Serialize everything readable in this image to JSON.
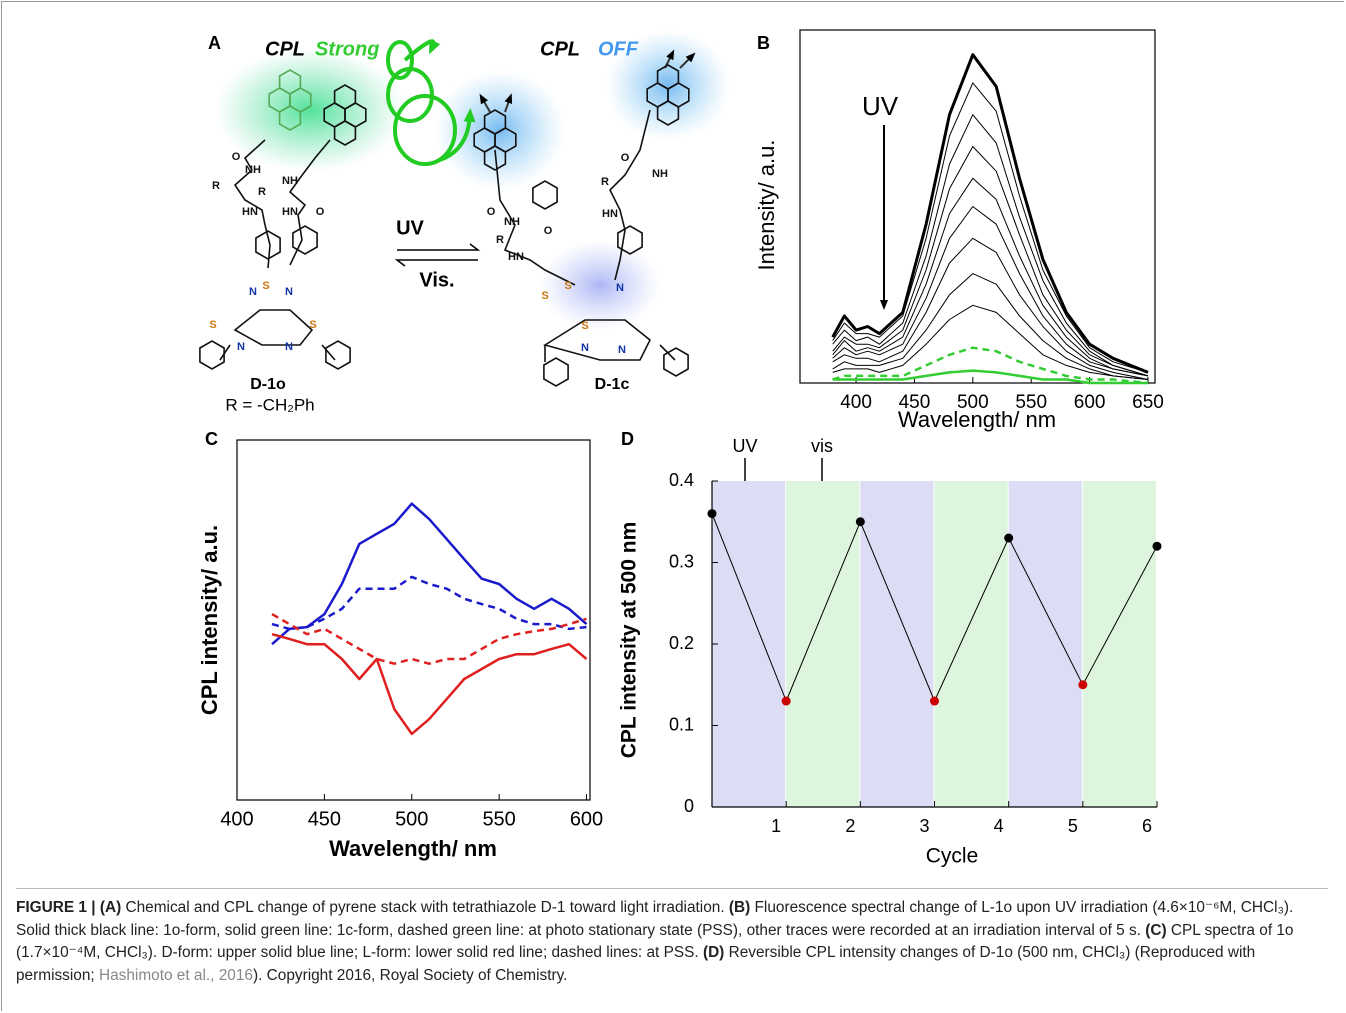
{
  "panel_a": {
    "letter": "A",
    "left_cpl": "CPL",
    "left_state": "Strong",
    "right_cpl": "CPL",
    "right_state": "OFF",
    "forward": "UV",
    "backward": "Vis.",
    "left_name": "D-1o",
    "substituent": "R = -CH₂Ph",
    "right_name": "D-1c",
    "left_atoms": [
      "O",
      "NH",
      "R",
      "R",
      "NH",
      "O",
      "HN",
      "HN",
      "S",
      "N",
      "N",
      "S",
      "S",
      "N",
      "N"
    ],
    "right_atoms": [
      "O",
      "NH",
      "R",
      "O",
      "HN",
      "O",
      "NH",
      "R",
      "HN",
      "S",
      "N",
      "S",
      "S",
      "N",
      "N"
    ]
  },
  "chart_data": [
    {
      "type": "line",
      "panel": "B",
      "xlabel": "Wavelength/ nm",
      "ylabel": "Intensity/ a.u.",
      "annotation": "UV",
      "frame": true,
      "x": [
        380,
        390,
        400,
        410,
        420,
        440,
        460,
        480,
        500,
        520,
        540,
        560,
        580,
        600,
        620,
        650
      ],
      "xlim": [
        352,
        656
      ],
      "xticks": [
        400,
        450,
        500,
        550,
        600,
        650
      ],
      "ylim": [
        0,
        100
      ],
      "series": [
        {
          "color": "#000000",
          "width": 3,
          "values": [
            13,
            19,
            15,
            16,
            14,
            20,
            45,
            76,
            93,
            84,
            58,
            35,
            20,
            11,
            7,
            3
          ]
        },
        {
          "color": "#000000",
          "width": 1,
          "values": [
            12,
            17,
            14,
            14,
            13,
            19,
            41,
            70,
            85,
            77,
            53,
            32,
            19,
            10,
            6,
            3
          ]
        },
        {
          "color": "#000000",
          "width": 1,
          "values": [
            11,
            15,
            12,
            13,
            11,
            17,
            36,
            62,
            76,
            68,
            47,
            29,
            17,
            9,
            5,
            2
          ]
        },
        {
          "color": "#000000",
          "width": 1,
          "values": [
            9,
            13,
            11,
            11,
            10,
            15,
            32,
            55,
            67,
            60,
            42,
            25,
            15,
            8,
            5,
            2
          ]
        },
        {
          "color": "#000000",
          "width": 1,
          "values": [
            8,
            12,
            9,
            10,
            9,
            13,
            28,
            48,
            58,
            52,
            36,
            22,
            13,
            7,
            4,
            2
          ]
        },
        {
          "color": "#000000",
          "width": 1,
          "values": [
            7,
            10,
            8,
            9,
            8,
            11,
            24,
            41,
            50,
            45,
            31,
            19,
            11,
            6,
            4,
            2
          ]
        },
        {
          "color": "#000000",
          "width": 1,
          "values": [
            6,
            8,
            7,
            7,
            6,
            9,
            20,
            34,
            41,
            37,
            25,
            16,
            9,
            5,
            3,
            1
          ]
        },
        {
          "color": "#000000",
          "width": 1,
          "values": [
            4,
            6,
            5,
            5,
            5,
            7,
            15,
            25,
            31,
            28,
            19,
            12,
            7,
            4,
            2,
            1
          ]
        },
        {
          "color": "#000000",
          "width": 1,
          "values": [
            3,
            4,
            4,
            4,
            3,
            5,
            11,
            18,
            22,
            20,
            14,
            8,
            5,
            3,
            2,
            1
          ]
        },
        {
          "color": "#33cc33",
          "width": 2.5,
          "dashed": true,
          "values": [
            1,
            2,
            2,
            2,
            2,
            2,
            5,
            8,
            10,
            9,
            6,
            4,
            2,
            1,
            1,
            0
          ]
        },
        {
          "color": "#33cc33",
          "width": 2.5,
          "values": [
            1,
            1,
            1,
            1,
            1,
            1,
            2,
            3,
            3.5,
            3,
            2,
            1,
            1,
            0,
            0,
            0
          ]
        }
      ]
    },
    {
      "type": "line",
      "panel": "C",
      "xlabel": "Wavelength/ nm",
      "ylabel": "CPL intensity/ a.u.",
      "frame": true,
      "x": [
        420,
        430,
        440,
        450,
        460,
        470,
        480,
        490,
        500,
        510,
        520,
        530,
        540,
        550,
        560,
        570,
        580,
        590,
        600
      ],
      "xlim": [
        400,
        602
      ],
      "xticks": [
        400,
        450,
        500,
        550,
        600
      ],
      "ylim": [
        -3,
        3.1
      ],
      "series": [
        {
          "color": "#1a1acc",
          "width": 2.5,
          "values": [
            -0.36,
            -0.1,
            -0.07,
            0.15,
            0.66,
            1.34,
            1.51,
            1.68,
            2.02,
            1.76,
            1.42,
            1.08,
            0.75,
            0.66,
            0.41,
            0.24,
            0.41,
            0.24,
            -0.02
          ]
        },
        {
          "color": "#1a1acc",
          "width": 2.5,
          "dashed": true,
          "values": [
            -0.02,
            -0.1,
            -0.07,
            0.07,
            0.24,
            0.58,
            0.58,
            0.58,
            0.78,
            0.66,
            0.58,
            0.41,
            0.32,
            0.24,
            0.07,
            -0.02,
            -0.02,
            -0.1,
            -0.07
          ]
        },
        {
          "color": "#e02020",
          "width": 2.5,
          "values": [
            -0.19,
            -0.27,
            -0.36,
            -0.36,
            -0.61,
            -0.95,
            -0.61,
            -1.46,
            -1.88,
            -1.63,
            -1.29,
            -0.95,
            -0.78,
            -0.61,
            -0.53,
            -0.53,
            -0.44,
            -0.36,
            -0.61
          ]
        },
        {
          "color": "#e02020",
          "width": 2.5,
          "dashed": true,
          "values": [
            0.15,
            -0.02,
            -0.19,
            -0.1,
            -0.27,
            -0.44,
            -0.61,
            -0.69,
            -0.61,
            -0.69,
            -0.61,
            -0.61,
            -0.44,
            -0.27,
            -0.19,
            -0.14,
            -0.1,
            -0.02,
            0.07
          ]
        }
      ]
    },
    {
      "type": "line",
      "panel": "D",
      "xlabel": "Cycle",
      "ylabel": "CPL intensity at 500 nm",
      "annotations": [
        "UV",
        "vis"
      ],
      "frame": false,
      "markers": true,
      "x": [
        0,
        1,
        2,
        3,
        4,
        5,
        6
      ],
      "xlim": [
        0,
        6
      ],
      "xticks": [
        1,
        2,
        3,
        4,
        5,
        6
      ],
      "ylim": [
        0,
        0.4
      ],
      "yticks": [
        0,
        0.1,
        0.2,
        0.3,
        0.4
      ],
      "bands": [
        {
          "from": 0,
          "to": 1,
          "color": "#dcdcf5"
        },
        {
          "from": 1,
          "to": 2,
          "color": "#dcf5dc"
        },
        {
          "from": 2,
          "to": 3,
          "color": "#dcdcf5"
        },
        {
          "from": 3,
          "to": 4,
          "color": "#dcf5dc"
        },
        {
          "from": 4,
          "to": 5,
          "color": "#dcdcf5"
        },
        {
          "from": 5,
          "to": 6,
          "color": "#dcf5dc"
        }
      ],
      "series": [
        {
          "color": "#000000",
          "width": 1,
          "values": [
            0.36,
            0.13,
            0.35,
            0.13,
            0.33,
            0.15,
            0.32
          ],
          "marker_colors": [
            "#000000",
            "#cc0000",
            "#000000",
            "#cc0000",
            "#000000",
            "#cc0000",
            "#000000"
          ]
        }
      ]
    }
  ],
  "caption": [
    "FIGURE 1 | (A)",
    " Chemical and CPL change of pyrene stack with tetrathiazole D-1 toward light irradiation. ",
    "(B)",
    " Fluorescence spectral change of L-1o upon UV irradiation (4.6×10⁻⁶M, CHCl₃). Solid thick black line: 1o-form, solid green line: 1c-form, dashed green line: at photo stationary state (PSS), other traces were recorded at an irradiation interval of 5 s. ",
    "(C)",
    " CPL spectra of 1o (1.7×10⁻⁴M, CHCl₃). D-form: upper solid blue line; L-form: lower solid red line; dashed lines: at PSS. ",
    "(D)",
    " Reversible CPL intensity changes of D-1o (500 nm, CHCl₃) (Reproduced with permission; ",
    "Hashimoto et al., 2016",
    "). Copyright 2016, Royal Society of Chemistry."
  ]
}
